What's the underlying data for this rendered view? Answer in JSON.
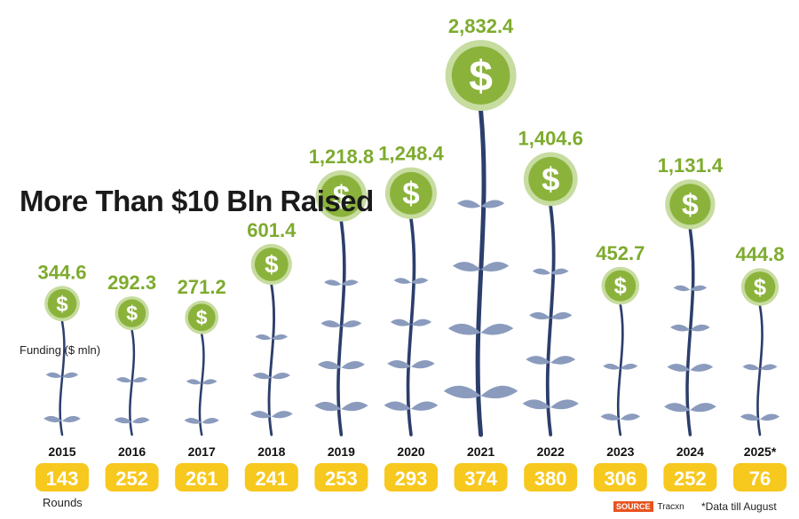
{
  "title": "More Than $10 Bln Raised",
  "funding_label": "Funding ($ mln)",
  "rounds_label": "Rounds",
  "footnote": "*Data till August",
  "source": {
    "tag": "SOURCE",
    "name": "Tracxn"
  },
  "colors": {
    "stem": "#2c3e6b",
    "leaf": "#8a9bbd",
    "coin": "#8bb33c",
    "coin_ring": "#c7dca0",
    "value_text": "#7eab2e",
    "round_badge": "#f7c81e",
    "year_text": "#111111"
  },
  "chart_data": {
    "type": "bar",
    "title": "More Than $10 Bln Raised",
    "categories": [
      "2015",
      "2016",
      "2017",
      "2018",
      "2019",
      "2020",
      "2021",
      "2022",
      "2023",
      "2024",
      "2025*"
    ],
    "series": [
      {
        "name": "Funding ($ mln)",
        "values": [
          344.6,
          292.3,
          271.2,
          601.4,
          1218.8,
          1248.4,
          2832.4,
          1404.6,
          452.7,
          1131.4,
          444.8
        ],
        "labels": [
          "344.6",
          "292.3",
          "271.2",
          "601.4",
          "1,218.8",
          "1,248.4",
          "2,832.4",
          "1,404.6",
          "452.7",
          "1,131.4",
          "444.8"
        ]
      },
      {
        "name": "Rounds",
        "values": [
          143,
          252,
          261,
          241,
          253,
          293,
          374,
          380,
          306,
          252,
          76
        ]
      }
    ],
    "ylabel": "Funding ($ mln)",
    "legend": "none",
    "grid": false
  }
}
